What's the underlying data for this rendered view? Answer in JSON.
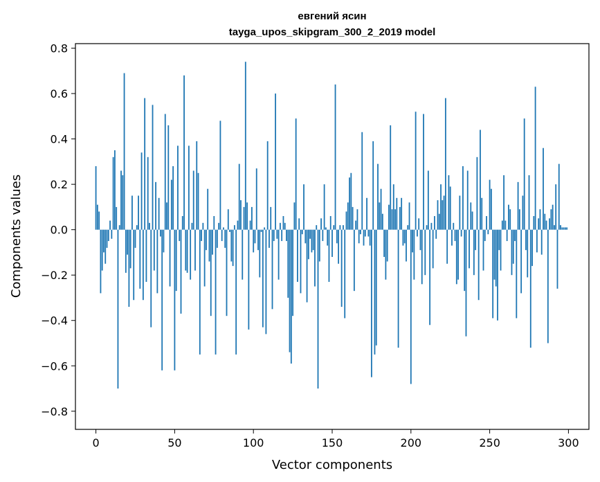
{
  "chart_data": {
    "type": "bar",
    "title": "евгений ясин",
    "subtitle": "tayga_upos_skipgram_300_2_2019 model",
    "xlabel": "Vector components",
    "ylabel": "Components values",
    "xlim": [
      -13,
      313
    ],
    "ylim": [
      -0.88,
      0.82
    ],
    "xticks": [
      0,
      50,
      100,
      150,
      200,
      250,
      300
    ],
    "yticks": [
      -0.8,
      -0.6,
      -0.4,
      -0.2,
      0.0,
      0.2,
      0.4,
      0.6,
      0.8
    ],
    "ytick_labels": [
      "−0.8",
      "−0.6",
      "−0.4",
      "−0.2",
      "0.0",
      "0.2",
      "0.4",
      "0.6",
      "0.8"
    ],
    "xtick_labels": [
      "0",
      "50",
      "100",
      "150",
      "200",
      "250",
      "300"
    ],
    "bar_color": "#1f77b4",
    "grid": false,
    "values": [
      0.28,
      0.11,
      0.08,
      -0.28,
      -0.18,
      -0.1,
      -0.15,
      -0.08,
      -0.05,
      0.04,
      -0.04,
      0.32,
      0.35,
      0.1,
      -0.7,
      0.02,
      0.26,
      0.24,
      0.69,
      -0.19,
      -0.11,
      -0.34,
      -0.17,
      0.15,
      -0.31,
      -0.08,
      0.02,
      0.15,
      -0.26,
      0.34,
      -0.31,
      0.58,
      -0.23,
      0.32,
      0.03,
      -0.43,
      0.55,
      -0.18,
      0.21,
      -0.28,
      0.14,
      -0.03,
      -0.62,
      -0.1,
      0.51,
      0.12,
      0.46,
      -0.25,
      0.22,
      0.28,
      -0.62,
      -0.27,
      0.37,
      -0.05,
      -0.37,
      0.06,
      0.68,
      -0.18,
      -0.19,
      0.37,
      -0.22,
      0.03,
      0.26,
      -0.18,
      0.39,
      0.25,
      -0.55,
      -0.05,
      0.03,
      -0.25,
      -0.09,
      0.18,
      -0.14,
      -0.38,
      -0.11,
      0.06,
      -0.55,
      -0.08,
      0.03,
      0.48,
      -0.05,
      0.01,
      -0.08,
      -0.38,
      0.09,
      -0.01,
      -0.14,
      -0.16,
      0.02,
      -0.55,
      0.04,
      0.29,
      0.13,
      -0.22,
      0.1,
      0.74,
      0.12,
      -0.44,
      0.04,
      0.1,
      -0.1,
      -0.06,
      0.27,
      -0.09,
      -0.21,
      -0.01,
      -0.43,
      0.01,
      -0.46,
      0.39,
      -0.08,
      0.1,
      -0.35,
      -0.05,
      0.6,
      -0.04,
      -0.22,
      0.03,
      -0.05,
      0.06,
      0.03,
      -0.05,
      -0.3,
      -0.54,
      -0.59,
      -0.38,
      0.12,
      0.49,
      -0.23,
      0.05,
      -0.28,
      -0.02,
      0.2,
      -0.06,
      -0.32,
      -0.13,
      -0.04,
      -0.1,
      -0.09,
      -0.25,
      0.02,
      -0.7,
      -0.14,
      0.05,
      -0.05,
      0.2,
      0.01,
      -0.07,
      -0.23,
      0.06,
      -0.12,
      0.02,
      0.64,
      -0.06,
      -0.15,
      0.02,
      -0.34,
      0.02,
      -0.39,
      0.08,
      0.12,
      0.23,
      0.25,
      0.1,
      -0.27,
      0.04,
      0.09,
      -0.06,
      -0.02,
      0.43,
      -0.07,
      -0.03,
      0.14,
      -0.03,
      -0.07,
      -0.65,
      0.39,
      -0.55,
      -0.51,
      0.29,
      0.12,
      0.18,
      0.07,
      -0.12,
      -0.22,
      -0.14,
      0.11,
      0.46,
      0.09,
      0.2,
      0.09,
      0.14,
      -0.52,
      0.1,
      0.14,
      -0.07,
      -0.06,
      -0.14,
      0.02,
      0.12,
      -0.68,
      -0.1,
      -0.22,
      0.52,
      -0.03,
      0.05,
      -0.09,
      -0.24,
      0.51,
      -0.2,
      0.02,
      0.26,
      -0.42,
      0.03,
      -0.17,
      0.06,
      -0.04,
      0.13,
      0.07,
      0.2,
      0.13,
      0.15,
      0.58,
      -0.15,
      0.24,
      0.19,
      -0.07,
      0.03,
      -0.05,
      -0.24,
      -0.22,
      0.15,
      -0.03,
      0.28,
      -0.27,
      -0.47,
      0.26,
      -0.17,
      0.12,
      0.08,
      -0.2,
      -0.09,
      0.32,
      -0.31,
      0.44,
      0.14,
      -0.18,
      -0.05,
      0.06,
      -0.02,
      0.22,
      0.18,
      -0.39,
      -0.22,
      -0.25,
      -0.4,
      -0.09,
      -0.18,
      0.04,
      0.24,
      0.04,
      -0.05,
      0.11,
      0.09,
      -0.2,
      -0.15,
      -0.05,
      -0.39,
      0.21,
      0.09,
      -0.28,
      0.15,
      0.49,
      -0.09,
      -0.21,
      0.24,
      -0.52,
      -0.16,
      0.06,
      0.63,
      -0.1,
      0.05,
      0.09,
      -0.11,
      0.36,
      0.07,
      0.04,
      -0.5,
      0.05,
      0.09,
      0.11,
      0.02,
      0.2,
      -0.26,
      0.29,
      0.02,
      0.01,
      0.01,
      0.01,
      0.01
    ]
  }
}
